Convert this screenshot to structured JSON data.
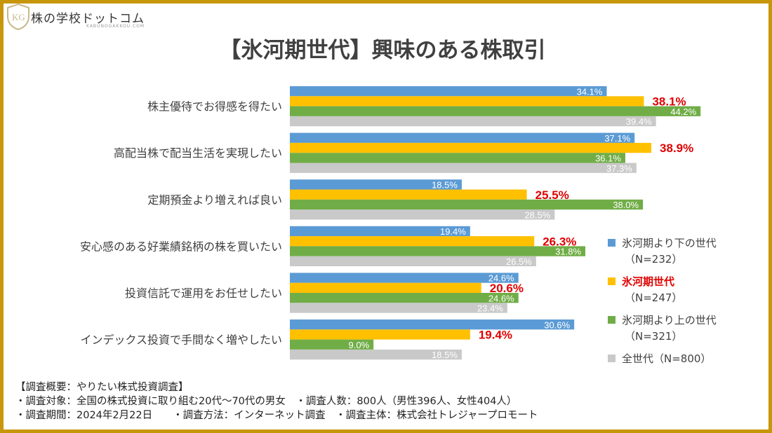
{
  "logo": {
    "name": "株の学校ドットコム",
    "sub": "KABUNOGAKKOU.COM"
  },
  "title": "【氷河期世代】興味のある株取引",
  "chart_data": {
    "type": "bar",
    "orientation": "horizontal",
    "title": "【氷河期世代】興味のある株取引",
    "categories": [
      "株主優待でお得感を得たい",
      "高配当株で配当生活を実現したい",
      "定期預金より増えれば良い",
      "安心感のある好業績銘柄の株を買いたい",
      "投資信託で運用をお任せしたい",
      "インデックス投資で手間なく増やしたい"
    ],
    "series": [
      {
        "name": "氷河期より下の世代",
        "n": "（N=232）",
        "color": "#5b9bd5",
        "values": [
          34.1,
          37.1,
          18.5,
          19.4,
          24.6,
          30.6
        ]
      },
      {
        "name": "氷河期世代",
        "n": "（N=247）",
        "color": "#ffc000",
        "highlight": "#e00000",
        "values": [
          38.1,
          38.9,
          25.5,
          26.3,
          20.6,
          19.4
        ]
      },
      {
        "name": "氷河期より上の世代",
        "n": "（N=321）",
        "color": "#70ad47",
        "values": [
          44.2,
          36.1,
          38.0,
          31.8,
          24.6,
          9.0
        ]
      },
      {
        "name": "全世代",
        "n": "（N=800）",
        "color": "#c9c9c9",
        "values": [
          39.4,
          37.3,
          28.5,
          26.5,
          23.4,
          18.5
        ]
      }
    ],
    "value_format": "%",
    "legend": "right",
    "grid": false
  },
  "footer": [
    "【調査概要：やりたい株式投資調査】",
    "・調査対象：全国の株式投資に取り組む20代～70代の男女　・調査人数：800人（男性396人、女性404人）",
    "・調査期間：2024年2月22日　　・調査方法：インターネット調査　・調査主体：株式会社トレジャープロモート"
  ]
}
